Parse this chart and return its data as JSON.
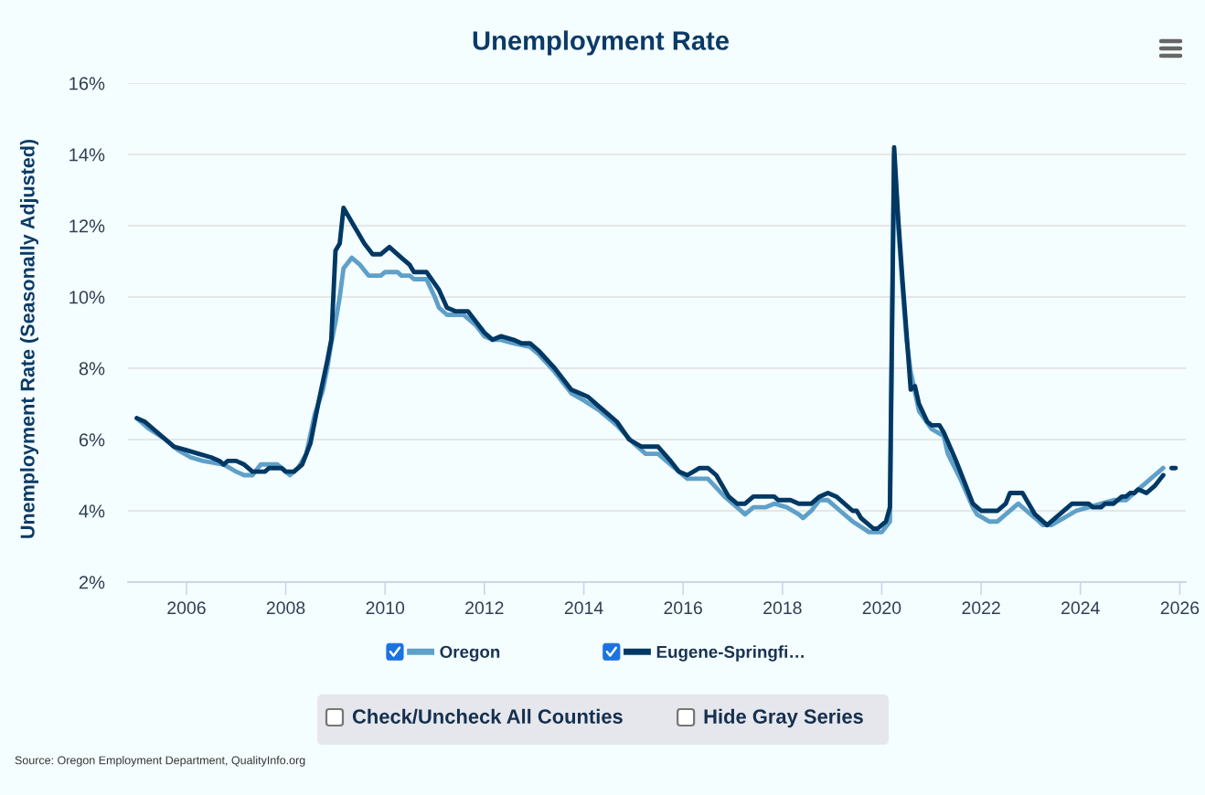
{
  "chart_data": {
    "type": "line",
    "title": "Unemployment Rate",
    "ylabel": "Unemployment Rate (Seasonally Adjusted)",
    "xlim": [
      "2004-10-28",
      "2026-02-14"
    ],
    "xticks": [
      "2006",
      "2008",
      "2010",
      "2012",
      "2014",
      "2016",
      "2018",
      "2020",
      "2022",
      "2024",
      "2026"
    ],
    "ylim": [
      2,
      16
    ],
    "yticks": [
      {
        "value": 2,
        "label": "2%"
      },
      {
        "value": 4,
        "label": "4%"
      },
      {
        "value": 6,
        "label": "6%"
      },
      {
        "value": 8,
        "label": "8%"
      },
      {
        "value": 10,
        "label": "10%"
      },
      {
        "value": 12,
        "label": "12%"
      },
      {
        "value": 14,
        "label": "14%"
      },
      {
        "value": 16,
        "label": "16%"
      }
    ],
    "grid": "y",
    "legend": "bottom",
    "line_style": "solid",
    "series": [
      {
        "name": "Oregon",
        "color": "#5ea0c8",
        "x": [
          "2005-01",
          "2005-04",
          "2005-08",
          "2005-11",
          "2006-02",
          "2006-05",
          "2006-10",
          "2007-01",
          "2007-03",
          "2007-05",
          "2007-07",
          "2007-11",
          "2008-02",
          "2008-04",
          "2008-06",
          "2008-08",
          "2008-10",
          "2008-11",
          "2008-12",
          "2009-01",
          "2009-02",
          "2009-03",
          "2009-05",
          "2009-07",
          "2009-09",
          "2009-12",
          "2010-01",
          "2010-04",
          "2010-05",
          "2010-07",
          "2010-08",
          "2010-11",
          "2011-01",
          "2011-02",
          "2011-04",
          "2011-08",
          "2011-11",
          "2012-01",
          "2012-03",
          "2012-05",
          "2012-08",
          "2012-12",
          "2013-02",
          "2013-06",
          "2013-10",
          "2014-01",
          "2014-05",
          "2014-09",
          "2015-01",
          "2015-04",
          "2015-07",
          "2015-12",
          "2016-02",
          "2016-07",
          "2016-11",
          "2017-02",
          "2017-04",
          "2017-06",
          "2017-09",
          "2017-11",
          "2018-02",
          "2018-05",
          "2018-06",
          "2018-08",
          "2018-10",
          "2018-12",
          "2019-03",
          "2019-06",
          "2019-10",
          "2020-01",
          "2020-03",
          "2020-04",
          "2020-05",
          "2020-06",
          "2020-07",
          "2020-08",
          "2020-10",
          "2021-01",
          "2021-04",
          "2021-05",
          "2021-08",
          "2021-11",
          "2021-12",
          "2022-03",
          "2022-05",
          "2022-07",
          "2022-10",
          "2022-12",
          "2023-02",
          "2023-04",
          "2023-06",
          "2023-09",
          "2023-12",
          "2024-03",
          "2024-09",
          "2024-12",
          "2025-03",
          "2025-06",
          "2025-07",
          "2025-09"
        ],
        "values": [
          6.6,
          6.3,
          6.0,
          5.7,
          5.5,
          5.4,
          5.3,
          5.1,
          5.0,
          5.0,
          5.3,
          5.3,
          5.0,
          5.2,
          5.6,
          6.7,
          7.4,
          8.0,
          8.7,
          9.3,
          10.0,
          10.8,
          11.1,
          10.9,
          10.6,
          10.6,
          10.7,
          10.7,
          10.6,
          10.6,
          10.5,
          10.5,
          10.0,
          9.7,
          9.5,
          9.5,
          9.2,
          8.9,
          8.8,
          8.8,
          8.7,
          8.6,
          8.4,
          7.9,
          7.3,
          7.1,
          6.8,
          6.4,
          5.9,
          5.6,
          5.6,
          5.1,
          4.9,
          4.9,
          4.4,
          4.1,
          3.9,
          4.1,
          4.1,
          4.2,
          4.1,
          3.9,
          3.8,
          4.0,
          4.3,
          4.3,
          4.0,
          3.7,
          3.4,
          3.4,
          3.7,
          14.0,
          12.0,
          10.3,
          8.8,
          7.9,
          6.8,
          6.3,
          6.1,
          5.6,
          4.9,
          4.1,
          3.9,
          3.7,
          3.7,
          3.9,
          4.2,
          4.0,
          3.8,
          3.6,
          3.6,
          3.8,
          4.0,
          4.1,
          4.3,
          4.3,
          4.6,
          4.9,
          5.0,
          5.2
        ]
      },
      {
        "name": "Eugene-Springfi…",
        "color": "#003864",
        "x": [
          "2005-01",
          "2005-03",
          "2005-10",
          "2006-01",
          "2006-04",
          "2006-07",
          "2006-09",
          "2006-10",
          "2006-11",
          "2007-01",
          "2007-03",
          "2007-05",
          "2007-08",
          "2007-09",
          "2007-12",
          "2008-01",
          "2008-03",
          "2008-05",
          "2008-07",
          "2008-09",
          "2008-11",
          "2008-12",
          "2009-01",
          "2009-02",
          "2009-03",
          "2009-06",
          "2009-08",
          "2009-10",
          "2009-12",
          "2010-02",
          "2010-05",
          "2010-07",
          "2010-08",
          "2010-11",
          "2011-02",
          "2011-04",
          "2011-06",
          "2011-09",
          "2011-11",
          "2012-01",
          "2012-03",
          "2012-05",
          "2012-08",
          "2012-10",
          "2012-12",
          "2013-02",
          "2013-06",
          "2013-08",
          "2013-10",
          "2013-12",
          "2014-02",
          "2014-05",
          "2014-07",
          "2014-09",
          "2014-12",
          "2015-03",
          "2015-07",
          "2015-10",
          "2015-12",
          "2016-02",
          "2016-05",
          "2016-07",
          "2016-09",
          "2016-12",
          "2017-02",
          "2017-04",
          "2017-06",
          "2017-11",
          "2017-12",
          "2018-03",
          "2018-05",
          "2018-08",
          "2018-10",
          "2018-12",
          "2019-02",
          "2019-06",
          "2019-07",
          "2019-08",
          "2019-11",
          "2019-12",
          "2020-02",
          "2020-03",
          "2020-04",
          "2020-05",
          "2020-06",
          "2020-07",
          "2020-08",
          "2020-09",
          "2020-10",
          "2020-12",
          "2021-01",
          "2021-03",
          "2021-04",
          "2021-07",
          "2021-09",
          "2021-11",
          "2022-01",
          "2022-05",
          "2022-07",
          "2022-08",
          "2022-11",
          "2023-02",
          "2023-05",
          "2023-08",
          "2023-11",
          "2024-03",
          "2024-04",
          "2024-06",
          "2024-07",
          "2024-09",
          "2024-11",
          "2024-12",
          "2025-01",
          "2025-02",
          "2025-03",
          "2025-05",
          "2025-07",
          "2025-09",
          "2025-10",
          "2025-11",
          "2025-12"
        ],
        "values": [
          6.6,
          6.5,
          5.8,
          5.7,
          5.6,
          5.5,
          5.4,
          5.3,
          5.4,
          5.4,
          5.3,
          5.1,
          5.1,
          5.2,
          5.2,
          5.1,
          5.1,
          5.3,
          5.9,
          7.1,
          8.2,
          8.8,
          11.3,
          11.5,
          12.5,
          11.9,
          11.5,
          11.2,
          11.2,
          11.4,
          11.1,
          10.9,
          10.7,
          10.7,
          10.2,
          9.7,
          9.6,
          9.6,
          9.3,
          9.0,
          8.8,
          8.9,
          8.8,
          8.7,
          8.7,
          8.5,
          8.0,
          7.7,
          7.4,
          7.3,
          7.2,
          6.9,
          6.7,
          6.5,
          6.0,
          5.8,
          5.8,
          5.4,
          5.1,
          5.0,
          5.2,
          5.2,
          5.0,
          4.4,
          4.2,
          4.2,
          4.4,
          4.4,
          4.3,
          4.3,
          4.2,
          4.2,
          4.4,
          4.5,
          4.4,
          4.0,
          4.0,
          3.8,
          3.5,
          3.5,
          3.7,
          4.1,
          14.2,
          12.2,
          10.5,
          9.0,
          7.4,
          7.5,
          7.0,
          6.5,
          6.4,
          6.4,
          6.2,
          5.4,
          4.8,
          4.2,
          4.0,
          4.0,
          4.2,
          4.5,
          4.5,
          3.9,
          3.6,
          3.9,
          4.2,
          4.2,
          4.1,
          4.1,
          4.2,
          4.2,
          4.4,
          4.4,
          4.5,
          4.5,
          4.6,
          4.5,
          4.7,
          5.0,
          null,
          5.2,
          5.2
        ]
      }
    ],
    "annotations": [
      "Check/Uncheck All Counties",
      "Hide Gray Series",
      "Source: Oregon Employment Department, QualityInfo.org"
    ]
  }
}
